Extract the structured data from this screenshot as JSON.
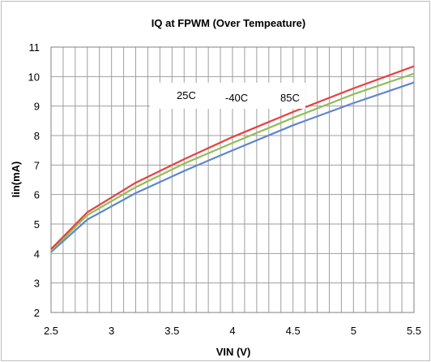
{
  "chart_data": {
    "type": "line",
    "title": "IQ  at FPWM (Over Tempeature)",
    "xlabel": "VIN (V)",
    "ylabel": "Iin(mA)",
    "xlim": [
      2.5,
      5.5
    ],
    "ylim": [
      2,
      11
    ],
    "x_ticks": [
      2.5,
      3,
      3.5,
      4,
      4.5,
      5,
      5.5
    ],
    "x_tick_labels": [
      "2.5",
      "3",
      "3.5",
      "4",
      "4.5",
      "5",
      "5.5"
    ],
    "y_ticks": [
      2,
      3,
      4,
      5,
      6,
      7,
      8,
      9,
      10,
      11
    ],
    "y_tick_labels": [
      "2",
      "3",
      "4",
      "5",
      "6",
      "7",
      "8",
      "9",
      "10",
      "11"
    ],
    "x_minor_step": 0.1,
    "grid": true,
    "legend_labels": [
      "25C",
      "-40C",
      "85C"
    ],
    "legend_placement": "top-center",
    "series": [
      {
        "name": "85C",
        "color": "#e84040",
        "x": [
          2.5,
          2.8,
          3.2,
          3.6,
          4.0,
          4.5,
          5.0,
          5.5
        ],
        "y": [
          4.15,
          5.4,
          6.4,
          7.2,
          7.95,
          8.8,
          9.6,
          10.35
        ]
      },
      {
        "name": "25C",
        "color": "#8fbf55",
        "x": [
          2.5,
          2.8,
          3.2,
          3.6,
          4.0,
          4.5,
          5.0,
          5.5
        ],
        "y": [
          4.1,
          5.3,
          6.25,
          7.05,
          7.75,
          8.6,
          9.4,
          10.1
        ]
      },
      {
        "name": "-40C",
        "color": "#5f86cc",
        "x": [
          2.5,
          2.8,
          3.2,
          3.6,
          4.0,
          4.5,
          5.0,
          5.5
        ],
        "y": [
          4.05,
          5.15,
          6.05,
          6.8,
          7.5,
          8.35,
          9.1,
          9.8
        ]
      }
    ]
  }
}
